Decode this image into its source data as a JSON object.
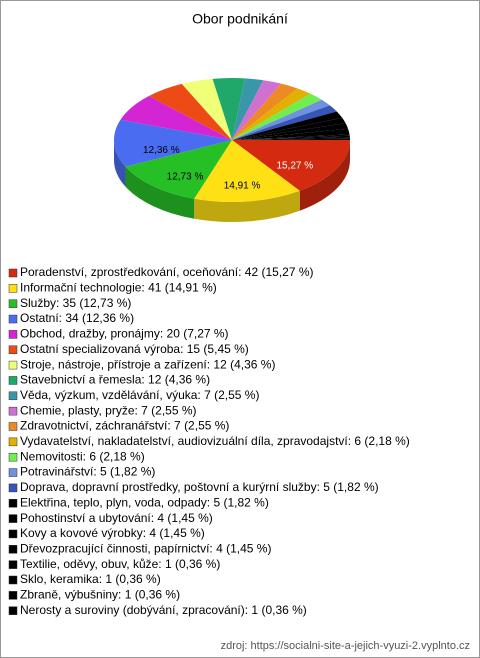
{
  "chart_data": {
    "type": "pie",
    "title": "Obor podnikání",
    "categories": [
      "Poradenství, zprostředkování, oceňování: 42 (15,27 %)",
      "Informační technologie: 41 (14,91 %)",
      "Služby: 35 (12,73 %)",
      "Ostatní: 34 (12,36 %)",
      "Obchod, dražby, pronájmy: 20 (7,27 %)",
      "Ostatní specializovaná výroba: 15 (5,45 %)",
      "Stroje, nástroje, přístroje a zařízení: 12 (4,36 %)",
      "Stavebnictví a řemesla: 12 (4,36 %)",
      "Věda, výzkum, vzdělávání, výuka: 7 (2,55 %)",
      "Chemie, plasty, pryže: 7 (2,55 %)",
      "Zdravotnictví, záchranářství: 7 (2,55 %)",
      "Vydavatelství, nakladatelství, audiovizuální díla, zpravodajství: 6 (2,18 %)",
      "Nemovitosti: 6 (2,18 %)",
      "Potravinářství: 5 (1,82 %)",
      "Doprava, dopravní prostředky, poštovní a kurýrní služby: 5 (1,82 %)",
      "Elektřina, teplo, plyn, voda, odpady: 5 (1,82 %)",
      "Pohostinství a ubytování: 4 (1,45 %)",
      "Kovy a kovové výrobky: 4 (1,45 %)",
      "Dřevozpracující činnosti, papírnictví: 4 (1,45 %)",
      "Textilie, oděvy, obuv, kůže: 1 (0,36 %)",
      "Sklo, keramika: 1 (0,36 %)",
      "Zbraně, výbušniny: 1 (0,36 %)",
      "Nerosty a suroviny (dobývání, zpracování): 1 (0,36 %)"
    ],
    "values": [
      15.27,
      14.91,
      12.73,
      12.36,
      7.27,
      5.45,
      4.36,
      4.36,
      2.55,
      2.55,
      2.55,
      2.18,
      2.18,
      1.82,
      1.82,
      1.82,
      1.45,
      1.45,
      1.45,
      0.36,
      0.36,
      0.36,
      0.36
    ],
    "value_labels": [
      "15,27 %",
      "14,91 %",
      "12,73 %",
      "12,36 %",
      null,
      null,
      null,
      null,
      null,
      null,
      null,
      null,
      null,
      null,
      null,
      null,
      null,
      null,
      null,
      null,
      null,
      null,
      null
    ],
    "colors": [
      "#d42a10",
      "#ffe014",
      "#26c026",
      "#4a6cf0",
      "#d425d4",
      "#ee4a16",
      "#f0ff78",
      "#1fa86a",
      "#3a97aa",
      "#d070d0",
      "#ee8a22",
      "#e2b000",
      "#70ee50",
      "#7090e0",
      "#3556b8",
      "#000000",
      "#000000",
      "#000000",
      "#000000",
      "#000000",
      "#000000",
      "#000000",
      "#000000"
    ],
    "source": "zdroj: https://socialni-site-a-jejich-vyuzi-2.vyplnto.cz"
  }
}
